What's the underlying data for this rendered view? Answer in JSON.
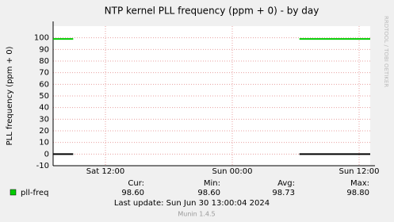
{
  "chart_data": {
    "type": "line",
    "title": "NTP kernel PLL frequency (ppm + 0) - by day",
    "y_label": "PLL frequency (ppm + 0)",
    "side_text": "RRDTOOL / TOBI OETIKER",
    "x": [
      0,
      1.9,
      12,
      23.3,
      30
    ],
    "xlim": [
      0,
      30
    ],
    "xticks": [
      {
        "value": 4.95,
        "label": "Sat 12:00"
      },
      {
        "value": 16.95,
        "label": "Sun 00:00"
      },
      {
        "value": 28.95,
        "label": "Sun 12:00"
      }
    ],
    "ylim": [
      -10,
      110
    ],
    "yticks": [
      -10,
      0,
      10,
      20,
      30,
      40,
      50,
      60,
      70,
      80,
      90,
      100
    ],
    "grid": true,
    "series": [
      {
        "name": "pll-freq",
        "color": "#00cc00",
        "values": [
          99,
          99,
          null,
          99,
          99
        ]
      },
      {
        "color": "#000000",
        "values": [
          0,
          0,
          null,
          0,
          0
        ]
      }
    ],
    "stats": {
      "headers": [
        "Cur:",
        "Min:",
        "Avg:",
        "Max:"
      ],
      "values": [
        "98.60",
        "98.60",
        "98.73",
        "98.80"
      ]
    },
    "last_update": "Last update: Sun Jun 30 13:00:04 2024",
    "footer": "Munin 1.4.5"
  }
}
